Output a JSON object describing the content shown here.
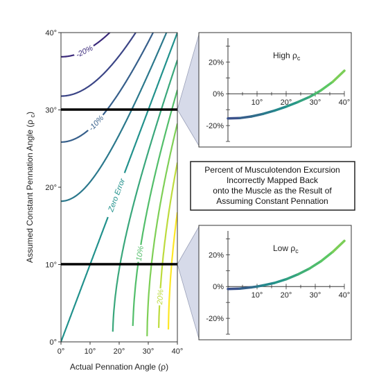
{
  "chart_data": [
    {
      "type": "contour",
      "x_axis": {
        "label": "Actual Pennation Angle (ρ)",
        "range": [
          0,
          40
        ],
        "ticks": [
          "0°",
          "10°",
          "20°",
          "30°",
          "40°"
        ]
      },
      "y_axis": {
        "label": "Assumed Constant Pennation Angle (ρc)",
        "range": [
          0,
          40
        ],
        "ticks": [
          "0°",
          "10°",
          "20°",
          "30°",
          "40°"
        ]
      },
      "contour_levels_percent": [
        -25,
        -20,
        -15,
        -10,
        -5,
        0,
        5,
        10,
        15,
        20,
        25
      ],
      "contour_labels": [
        {
          "text": "-20%",
          "level": -20
        },
        {
          "text": "-10%",
          "level": -10
        },
        {
          "text": "Zero Error",
          "level": 0
        },
        {
          "text": "10%",
          "level": 10
        },
        {
          "text": "20%",
          "level": 20
        }
      ],
      "highlighted_rows": [
        30,
        10
      ]
    },
    {
      "type": "line",
      "label": "High ρ",
      "label_subscript": "c",
      "assumed_angle": 30,
      "x_ticks": [
        "10°",
        "20°",
        "30°",
        "40°"
      ],
      "y_ticks": [
        "20%",
        "0%",
        "-20%"
      ],
      "x_range": [
        0,
        40
      ],
      "y_range": [
        -30,
        35
      ],
      "x": [
        0,
        4,
        8,
        12,
        16,
        20,
        24,
        28,
        30,
        32,
        36,
        40
      ],
      "y": [
        -15.5,
        -15.3,
        -14.3,
        -12.7,
        -10.6,
        -8.1,
        -5.2,
        -2.0,
        0.0,
        2.2,
        7.5,
        14.5
      ]
    },
    {
      "type": "line",
      "label": "Low ρ",
      "label_subscript": "c",
      "assumed_angle": 10,
      "x_ticks": [
        "10°",
        "20°",
        "30°",
        "40°"
      ],
      "y_ticks": [
        "20%",
        "0%",
        "-20%"
      ],
      "x_range": [
        0,
        40
      ],
      "y_range": [
        -30,
        35
      ],
      "x": [
        0,
        4,
        8,
        10,
        12,
        16,
        20,
        24,
        28,
        32,
        36,
        40
      ],
      "y": [
        -1.5,
        -1.3,
        -0.5,
        0.0,
        0.7,
        2.3,
        4.6,
        7.6,
        11.3,
        16.0,
        21.8,
        28.7
      ]
    }
  ],
  "caption": {
    "lines": [
      "Percent of Musculotendon Excursion",
      "Incorrectly Mapped Back",
      "onto the Muscle as the Result of",
      "Assuming Constant Pennation"
    ]
  },
  "colors": {
    "contour_low": "#3b0f70",
    "contour_mid": "#21918c",
    "contour_high": "#fde725",
    "highlight_line": "#000000",
    "callout_fill": "#d6dae9"
  }
}
